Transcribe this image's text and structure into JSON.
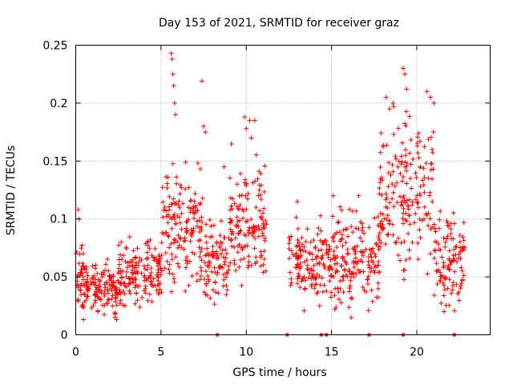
{
  "chart_data": {
    "type": "scatter",
    "title": "Day 153 of 2021, SRMTID for receiver graz",
    "xlabel": "GPS time / hours",
    "ylabel": "SRMTID / TECUs",
    "xlim": [
      0,
      24.3
    ],
    "ylim": [
      0,
      0.25
    ],
    "x_ticks": [
      0,
      5,
      10,
      15,
      20
    ],
    "x_tick_labels": [
      "0",
      "5",
      "10",
      "15",
      "20"
    ],
    "y_ticks": [
      0,
      0.05,
      0.1,
      0.15,
      0.2,
      0.25
    ],
    "y_tick_labels": [
      "0",
      "0.05",
      "0.1",
      "0.15",
      "0.2",
      "0.25"
    ],
    "grid": true,
    "marker": "+",
    "series_color": "#ff0000",
    "density_profile": [
      {
        "x0": 0.0,
        "x1": 0.5,
        "y_center": 0.05,
        "y_spread": 0.025,
        "n": 40
      },
      {
        "x0": 0.5,
        "x1": 2.5,
        "y_center": 0.04,
        "y_spread": 0.02,
        "n": 130
      },
      {
        "x0": 2.5,
        "x1": 5.0,
        "y_center": 0.055,
        "y_spread": 0.025,
        "n": 160
      },
      {
        "x0": 5.0,
        "x1": 7.5,
        "y_center": 0.09,
        "y_spread": 0.045,
        "n": 160
      },
      {
        "x0": 7.5,
        "x1": 9.0,
        "y_center": 0.065,
        "y_spread": 0.03,
        "n": 90
      },
      {
        "x0": 9.0,
        "x1": 11.2,
        "y_center": 0.1,
        "y_spread": 0.045,
        "n": 140
      },
      {
        "x0": 12.5,
        "x1": 15.0,
        "y_center": 0.06,
        "y_spread": 0.03,
        "n": 150
      },
      {
        "x0": 15.0,
        "x1": 17.8,
        "y_center": 0.065,
        "y_spread": 0.035,
        "n": 170
      },
      {
        "x0": 17.8,
        "x1": 21.0,
        "y_center": 0.12,
        "y_spread": 0.06,
        "n": 190
      },
      {
        "x0": 21.0,
        "x1": 22.8,
        "y_center": 0.065,
        "y_spread": 0.035,
        "n": 110
      }
    ],
    "highlight_points": [
      {
        "x": 5.6,
        "y": 0.243
      },
      {
        "x": 5.65,
        "y": 0.238
      },
      {
        "x": 5.7,
        "y": 0.225
      },
      {
        "x": 5.75,
        "y": 0.215
      },
      {
        "x": 5.8,
        "y": 0.2
      },
      {
        "x": 5.85,
        "y": 0.19
      },
      {
        "x": 7.4,
        "y": 0.219
      },
      {
        "x": 7.5,
        "y": 0.18
      },
      {
        "x": 7.6,
        "y": 0.175
      },
      {
        "x": 9.9,
        "y": 0.188
      },
      {
        "x": 10.2,
        "y": 0.185
      },
      {
        "x": 10.5,
        "y": 0.185
      },
      {
        "x": 10.0,
        "y": 0.178
      },
      {
        "x": 10.3,
        "y": 0.17
      },
      {
        "x": 19.2,
        "y": 0.23
      },
      {
        "x": 19.3,
        "y": 0.225
      },
      {
        "x": 19.4,
        "y": 0.212
      },
      {
        "x": 18.2,
        "y": 0.205
      },
      {
        "x": 18.4,
        "y": 0.195
      },
      {
        "x": 18.6,
        "y": 0.2
      },
      {
        "x": 20.8,
        "y": 0.205
      },
      {
        "x": 21.0,
        "y": 0.2
      },
      {
        "x": 20.6,
        "y": 0.21
      },
      {
        "x": 2.3,
        "y": 0.015
      },
      {
        "x": 2.4,
        "y": 0.013
      },
      {
        "x": 21.6,
        "y": 0.02
      },
      {
        "x": 14.3,
        "y": 0.025
      },
      {
        "x": 15.2,
        "y": 0.022
      },
      {
        "x": 0.15,
        "y": 0.108
      },
      {
        "x": 0.2,
        "y": 0.1
      },
      {
        "x": 15.1,
        "y": 0.12
      },
      {
        "x": 16.6,
        "y": 0.12
      },
      {
        "x": 13.0,
        "y": 0.115
      },
      {
        "x": 8.7,
        "y": 0.145
      }
    ],
    "data_gaps_at_zero": [
      8.3,
      12.4,
      14.4,
      14.7,
      17.2,
      19.2,
      22.2
    ]
  }
}
